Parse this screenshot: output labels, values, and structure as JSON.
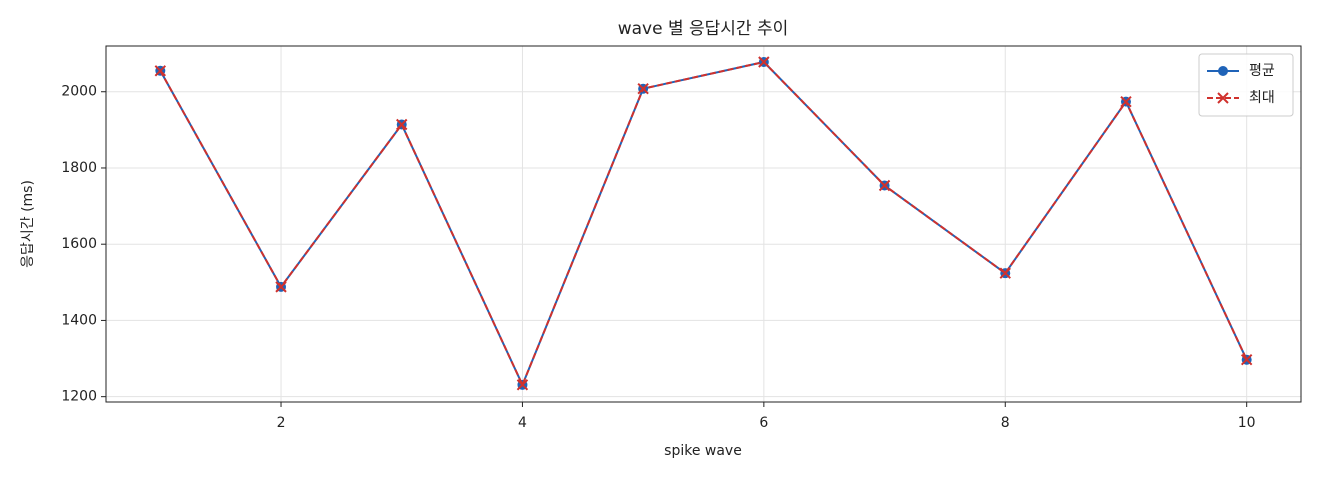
{
  "chart_data": {
    "type": "line",
    "title": "wave 별 응답시간 추이",
    "x_label": "spike wave",
    "y_label": "응답시간 (ms)",
    "x": [
      1,
      2,
      3,
      4,
      5,
      6,
      7,
      8,
      9,
      10
    ],
    "series": [
      {
        "name": "평균",
        "color": "#1f63b8",
        "marker": "o",
        "linestyle": "solid",
        "values": [
          2055,
          1488,
          1914,
          1231,
          2008,
          2078,
          1754,
          1524,
          1974,
          1297
        ]
      },
      {
        "name": "최대",
        "color": "#d0312d",
        "marker": "x",
        "linestyle": "dashed",
        "values": [
          2055,
          1488,
          1914,
          1231,
          2008,
          2078,
          1754,
          1524,
          1974,
          1297
        ]
      }
    ],
    "xlim": [
      0.55,
      10.45
    ],
    "xticks": [
      2,
      4,
      6,
      8,
      10
    ],
    "ylim": [
      1186,
      2120
    ],
    "yticks": [
      1200,
      1400,
      1600,
      1800,
      2000
    ],
    "grid": true,
    "legend": "upper right"
  }
}
